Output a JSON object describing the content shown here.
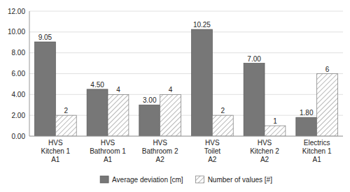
{
  "chart_data": {
    "type": "bar",
    "categories": [
      "HVS\nKitchen 1\nA1",
      "HVS\nBathroom 1\nA1",
      "HVS\nBathroom 2\nA2",
      "HVS\nToilet\nA2",
      "HVS\nKitchen 2\nA2",
      "Electrics\nKitchen 1\nA1"
    ],
    "series": [
      {
        "name": "Average deviation [cm]",
        "color": "#777777",
        "values": [
          9.05,
          4.5,
          3.0,
          10.25,
          7.0,
          1.8
        ],
        "value_labels": [
          "9.05",
          "4.50",
          "3.00",
          "10.25",
          "7.00",
          "1.80"
        ]
      },
      {
        "name": "Number of values [#]",
        "color": "#ffffff",
        "values": [
          2,
          4,
          4,
          2,
          1,
          6
        ]
      }
    ],
    "ylim": [
      0,
      12
    ],
    "yticks": [
      {
        "value": 0,
        "label": "0.00"
      },
      {
        "value": 2,
        "label": "2.00"
      },
      {
        "value": 4,
        "label": "4.00"
      },
      {
        "value": 6,
        "label": "6.00"
      },
      {
        "value": 8,
        "label": "8.00"
      },
      {
        "value": 10,
        "label": "10.00"
      },
      {
        "value": 12,
        "label": "12.00"
      }
    ],
    "grid": true,
    "data_labels": true,
    "legend": "bottom"
  }
}
